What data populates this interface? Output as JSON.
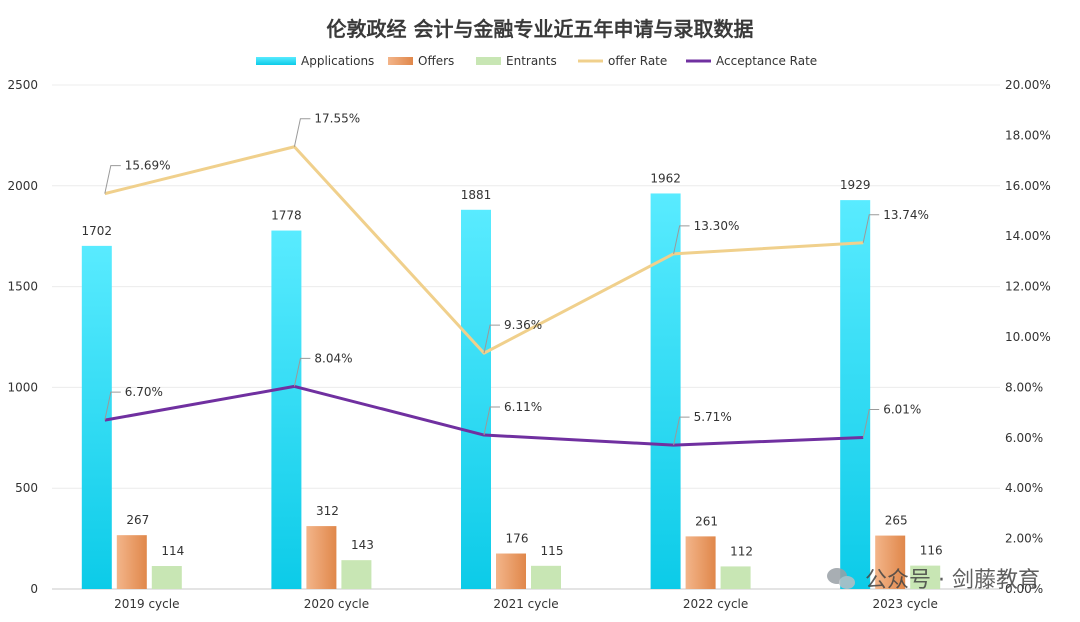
{
  "chart_data": {
    "type": "bar",
    "title": "伦敦政经 会计与金融专业近五年申请与录取数据",
    "categories": [
      "2019 cycle",
      "2020 cycle",
      "2021 cycle",
      "2022 cycle",
      "2023 cycle"
    ],
    "series": [
      {
        "name": "Applications",
        "type": "bar",
        "axis": "left",
        "values": [
          1702,
          1778,
          1881,
          1962,
          1929
        ],
        "color": "#2dd3f0"
      },
      {
        "name": "Offers",
        "type": "bar",
        "axis": "left",
        "values": [
          267,
          312,
          176,
          261,
          265
        ],
        "color": "#e89a5e"
      },
      {
        "name": "Entrants",
        "type": "bar",
        "axis": "left",
        "values": [
          114,
          143,
          115,
          112,
          116
        ],
        "color": "#c8e6b4"
      },
      {
        "name": "offer Rate",
        "type": "line",
        "axis": "right",
        "values": [
          15.69,
          17.55,
          9.36,
          13.3,
          13.74
        ],
        "labels": [
          "15.69%",
          "17.55%",
          "9.36%",
          "13.30%",
          "13.74%"
        ],
        "color": "#f0d08c"
      },
      {
        "name": "Acceptance Rate",
        "type": "line",
        "axis": "right",
        "values": [
          6.7,
          8.04,
          6.11,
          5.71,
          6.01
        ],
        "labels": [
          "6.70%",
          "8.04%",
          "6.11%",
          "5.71%",
          "6.01%"
        ],
        "color": "#7030a0"
      }
    ],
    "ylim_left": [
      0,
      2500
    ],
    "yticks_left": [
      0,
      500,
      1000,
      1500,
      2000,
      2500
    ],
    "ylim_right": [
      0,
      20
    ],
    "yticks_right_labels": [
      "0.00%",
      "2.00%",
      "4.00%",
      "6.00%",
      "8.00%",
      "10.00%",
      "12.00%",
      "14.00%",
      "16.00%",
      "18.00%",
      "20.00%"
    ],
    "legend_position": "top-center",
    "grid": true
  },
  "watermark": {
    "label": "公众号 · 剑藤教育",
    "icon": "wechat-icon"
  }
}
